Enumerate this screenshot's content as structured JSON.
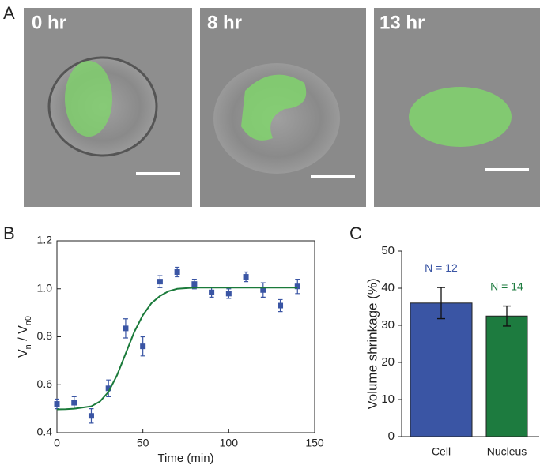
{
  "panel_labels": [
    "A",
    "B",
    "C"
  ],
  "images": [
    {
      "label": "0 hr"
    },
    {
      "label": "8 hr"
    },
    {
      "label": "13 hr"
    }
  ],
  "chart_data": [
    {
      "type": "scatter",
      "xlabel": "Time (min)",
      "ylabel": [
        "V",
        "n",
        " / V",
        "n0"
      ],
      "xlim": [
        0,
        150
      ],
      "xticks": [
        0,
        50,
        100,
        150
      ],
      "ylim": [
        0.4,
        1.2
      ],
      "yticks": [
        0.4,
        0.6,
        0.8,
        {
          "value": 1,
          "label": "1.0"
        },
        1.2
      ],
      "series": [
        {
          "kind": "points",
          "color": "#3a55a4",
          "x": [
            0,
            10,
            20,
            30,
            40,
            50,
            60,
            70,
            80,
            90,
            100,
            110,
            120,
            130,
            140
          ],
          "values": [
            0.52,
            0.525,
            0.47,
            0.585,
            0.835,
            0.76,
            1.03,
            1.07,
            1.02,
            0.985,
            0.98,
            1.05,
            0.995,
            0.93,
            1.01
          ],
          "errors": [
            0.02,
            0.025,
            0.03,
            0.035,
            0.04,
            0.04,
            0.025,
            0.02,
            0.02,
            0.02,
            0.02,
            0.02,
            0.03,
            0.025,
            0.03
          ]
        },
        {
          "kind": "line",
          "color": "#1a7a3a",
          "x": [
            0,
            5,
            10,
            15,
            20,
            25,
            30,
            35,
            40,
            45,
            50,
            55,
            60,
            65,
            70,
            80,
            90,
            100,
            110,
            120,
            130,
            140
          ],
          "values": [
            0.497,
            0.498,
            0.5,
            0.505,
            0.51,
            0.53,
            0.57,
            0.64,
            0.73,
            0.82,
            0.89,
            0.94,
            0.97,
            0.99,
            1.0,
            1.005,
            1.005,
            1.005,
            1.005,
            1.005,
            1.005,
            1.005
          ]
        }
      ]
    },
    {
      "type": "bar",
      "ylabel": "Volume shrinkage (%)",
      "ylim": [
        0,
        50
      ],
      "yticks": [
        0,
        10,
        20,
        30,
        40,
        50
      ],
      "categories": [
        "Cell",
        "Nucleus"
      ],
      "values": [
        36,
        32.5
      ],
      "errors": [
        4.2,
        2.7
      ],
      "colors": [
        "#3a55a4",
        "#1d7b3f"
      ],
      "annotations": [
        {
          "text": "N = 12",
          "color": "#3a55a4"
        },
        {
          "text": "N = 14",
          "color": "#1d7b3f"
        }
      ]
    }
  ]
}
